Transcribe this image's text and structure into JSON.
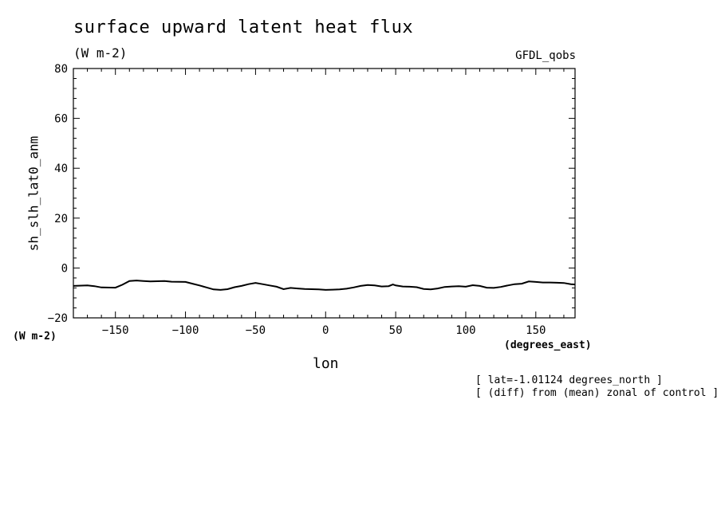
{
  "chart_data": {
    "type": "line",
    "title": "surface upward latent heat flux",
    "subtitle": "(W m-2)",
    "source_label": "GFDL_qobs",
    "ylabel": "sh_slh_lat0_anm",
    "ylabel_units": "(W m-2)",
    "xlabel": "lon",
    "xlabel_units": "(degrees_east)",
    "xlim": [
      -180,
      178
    ],
    "ylim": [
      -20,
      80
    ],
    "xticks": [
      -150,
      -100,
      -50,
      0,
      50,
      100,
      150
    ],
    "yticks": [
      -20,
      0,
      20,
      40,
      60,
      80
    ],
    "grid": false,
    "annotations": [
      "[ lat=-1.01124 degrees_north ]",
      "[ (diff) from (mean) zonal of control ]"
    ],
    "series": [
      {
        "x": [
          -180,
          -170,
          -165,
          -160,
          -150,
          -145,
          -140,
          -135,
          -130,
          -125,
          -120,
          -115,
          -110,
          -100,
          -95,
          -90,
          -85,
          -80,
          -75,
          -70,
          -65,
          -60,
          -55,
          -50,
          -45,
          -40,
          -35,
          -30,
          -25,
          -20,
          -15,
          -10,
          -5,
          0,
          5,
          10,
          15,
          20,
          25,
          30,
          35,
          40,
          45,
          48,
          50,
          55,
          60,
          65,
          70,
          75,
          80,
          85,
          90,
          95,
          100,
          105,
          110,
          115,
          120,
          125,
          130,
          135,
          140,
          145,
          150,
          155,
          160,
          165,
          170,
          175,
          178
        ],
        "y": [
          -7.2,
          -7.0,
          -7.3,
          -7.8,
          -7.9,
          -6.7,
          -5.2,
          -5.0,
          -5.2,
          -5.4,
          -5.3,
          -5.2,
          -5.5,
          -5.6,
          -6.3,
          -7.0,
          -7.8,
          -8.6,
          -8.8,
          -8.5,
          -7.7,
          -7.2,
          -6.5,
          -6.0,
          -6.5,
          -7.0,
          -7.5,
          -8.5,
          -8.0,
          -8.2,
          -8.4,
          -8.5,
          -8.6,
          -8.8,
          -8.7,
          -8.6,
          -8.3,
          -7.8,
          -7.2,
          -6.8,
          -7.0,
          -7.4,
          -7.3,
          -6.6,
          -7.0,
          -7.4,
          -7.5,
          -7.7,
          -8.4,
          -8.6,
          -8.2,
          -7.6,
          -7.4,
          -7.3,
          -7.5,
          -6.9,
          -7.2,
          -7.9,
          -8.0,
          -7.6,
          -7.0,
          -6.5,
          -6.3,
          -5.4,
          -5.6,
          -5.8,
          -5.8,
          -5.9,
          -6.0,
          -6.5,
          -6.6
        ]
      }
    ]
  }
}
